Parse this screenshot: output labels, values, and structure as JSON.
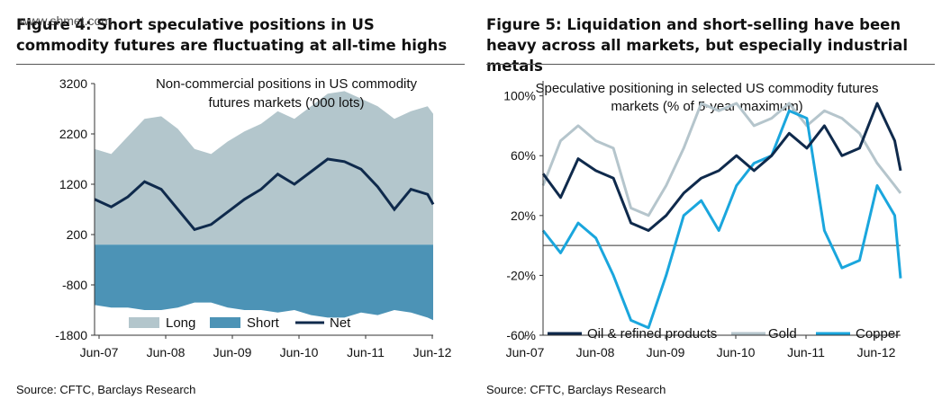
{
  "left": {
    "figure_title": "Figure 4: Short speculative positions in US commodity futures are fluctuating at all-time highs",
    "watermark": "www.shmet.com",
    "source": "Source: CFTC, Barclays Research"
  },
  "right": {
    "figure_title": "Figure 5: Liquidation and short-selling have been heavy across all markets, but especially industrial metals",
    "source": "Source: CFTC, Barclays Research"
  },
  "colors": {
    "long": "#b3c6cc",
    "short": "#4c93b6",
    "net": "#0f2a4c",
    "oil": "#0f2a4c",
    "gold": "#b5c5cc",
    "copper": "#1aa6dd"
  },
  "chart_data": [
    {
      "type": "area",
      "title": "Non-commercial positions in US commodity futures markets ('000 lots)",
      "x_ticks": [
        "Jun-07",
        "Jun-08",
        "Jun-09",
        "Jun-10",
        "Jun-11",
        "Jun-12"
      ],
      "y_ticks": [
        "3200",
        "2200",
        "1200",
        "200",
        "-800",
        "-1800"
      ],
      "ylim": [
        -1800,
        3200
      ],
      "legend_position": "bottom",
      "x": [
        "2007-05",
        "2007-08",
        "2007-11",
        "2008-02",
        "2008-05",
        "2008-08",
        "2008-11",
        "2009-02",
        "2009-05",
        "2009-08",
        "2009-11",
        "2010-02",
        "2010-05",
        "2010-08",
        "2010-11",
        "2011-02",
        "2011-05",
        "2011-08",
        "2011-11",
        "2012-02",
        "2012-05",
        "2012-06"
      ],
      "series": [
        {
          "name": "Long",
          "values": [
            1900,
            1800,
            2150,
            2500,
            2550,
            2300,
            1900,
            1800,
            2050,
            2250,
            2400,
            2650,
            2500,
            2750,
            3000,
            3050,
            2900,
            2750,
            2500,
            2650,
            2750,
            2600
          ]
        },
        {
          "name": "Short",
          "values": [
            -1200,
            -1250,
            -1250,
            -1300,
            -1300,
            -1250,
            -1150,
            -1150,
            -1250,
            -1300,
            -1300,
            -1350,
            -1300,
            -1400,
            -1450,
            -1450,
            -1350,
            -1400,
            -1300,
            -1350,
            -1450,
            -1500
          ]
        },
        {
          "name": "Net",
          "values": [
            900,
            750,
            950,
            1250,
            1100,
            700,
            300,
            400,
            650,
            900,
            1100,
            1400,
            1200,
            1450,
            1700,
            1650,
            1500,
            1150,
            700,
            1100,
            1000,
            800
          ]
        }
      ]
    },
    {
      "type": "line",
      "title": "Speculative positioning in selected US commodity futures markets (% of 5-year maximum)",
      "x_ticks": [
        "Jun-07",
        "Jun-08",
        "Jun-09",
        "Jun-10",
        "Jun-11",
        "Jun-12"
      ],
      "y_ticks": [
        "100%",
        "60%",
        "20%",
        "-20%",
        "-60%"
      ],
      "ylim": [
        -60,
        120
      ],
      "legend_position": "bottom",
      "x": [
        "2007-05",
        "2007-08",
        "2007-11",
        "2008-02",
        "2008-05",
        "2008-08",
        "2008-11",
        "2009-02",
        "2009-05",
        "2009-08",
        "2009-11",
        "2010-02",
        "2010-05",
        "2010-08",
        "2010-11",
        "2011-02",
        "2011-05",
        "2011-08",
        "2011-11",
        "2012-02",
        "2012-05",
        "2012-06"
      ],
      "series": [
        {
          "name": "Oil & refined products",
          "values": [
            48,
            32,
            58,
            50,
            45,
            15,
            10,
            20,
            35,
            45,
            50,
            60,
            50,
            60,
            75,
            65,
            80,
            60,
            65,
            95,
            70,
            50
          ]
        },
        {
          "name": "Gold",
          "values": [
            40,
            70,
            80,
            70,
            65,
            25,
            20,
            40,
            65,
            95,
            90,
            95,
            80,
            85,
            95,
            80,
            90,
            85,
            75,
            55,
            40,
            35
          ]
        },
        {
          "name": "Copper",
          "values": [
            10,
            -5,
            15,
            5,
            -20,
            -50,
            -55,
            -20,
            20,
            30,
            10,
            40,
            55,
            60,
            90,
            85,
            10,
            -15,
            -10,
            40,
            20,
            -22
          ]
        }
      ]
    }
  ]
}
